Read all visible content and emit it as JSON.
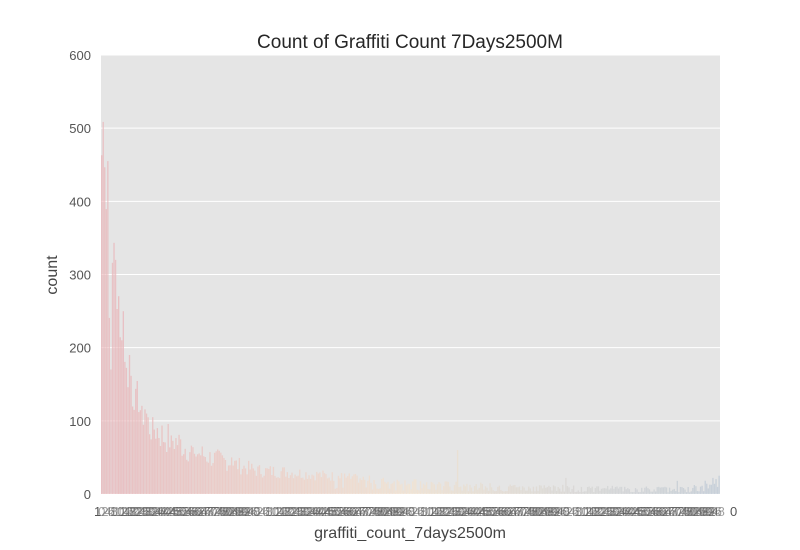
{
  "chart_data": {
    "type": "bar",
    "title": "Count of Graffiti Count 7Days2500M",
    "xlabel": "graffiti_count_7days2500m",
    "ylabel": "count",
    "ylim": [
      0,
      600
    ],
    "y_ticks": [
      "0",
      "100",
      "200",
      "300",
      "400",
      "500",
      "600"
    ],
    "x_tick_first": "1",
    "x_tick_last": "0",
    "n_categories": 400,
    "grid": true,
    "legend": "none",
    "background_color": "#e5e5e5",
    "palette": {
      "start": "#e8b4b8",
      "middle": "#f2e2cf",
      "end": "#bfcad6"
    },
    "envelope": [
      [
        0,
        465
      ],
      [
        1,
        495
      ],
      [
        2,
        540
      ],
      [
        3,
        440
      ],
      [
        4,
        300
      ],
      [
        5,
        240
      ],
      [
        6,
        210
      ],
      [
        8,
        330
      ],
      [
        10,
        280
      ],
      [
        12,
        200
      ],
      [
        14,
        250
      ],
      [
        16,
        160
      ],
      [
        18,
        185
      ],
      [
        20,
        140
      ],
      [
        22,
        120
      ],
      [
        24,
        135
      ],
      [
        26,
        100
      ],
      [
        28,
        120
      ],
      [
        30,
        95
      ],
      [
        35,
        90
      ],
      [
        40,
        78
      ],
      [
        45,
        75
      ],
      [
        50,
        70
      ],
      [
        55,
        62
      ],
      [
        60,
        58
      ],
      [
        70,
        50
      ],
      [
        80,
        45
      ],
      [
        90,
        38
      ],
      [
        100,
        32
      ],
      [
        120,
        30
      ],
      [
        140,
        26
      ],
      [
        160,
        22
      ],
      [
        180,
        18
      ],
      [
        200,
        16
      ],
      [
        230,
        13
      ],
      [
        260,
        11
      ],
      [
        290,
        10
      ],
      [
        320,
        9
      ],
      [
        350,
        8
      ],
      [
        380,
        8
      ],
      [
        399,
        20
      ]
    ],
    "spikes": [
      [
        4,
        455
      ],
      [
        9,
        320
      ],
      [
        13,
        210
      ],
      [
        21,
        115
      ],
      [
        33,
        105
      ],
      [
        45,
        80
      ],
      [
        60,
        55
      ],
      [
        84,
        50
      ],
      [
        140,
        28
      ],
      [
        230,
        60
      ],
      [
        300,
        22
      ],
      [
        372,
        18
      ],
      [
        395,
        22
      ],
      [
        399,
        25
      ]
    ]
  }
}
